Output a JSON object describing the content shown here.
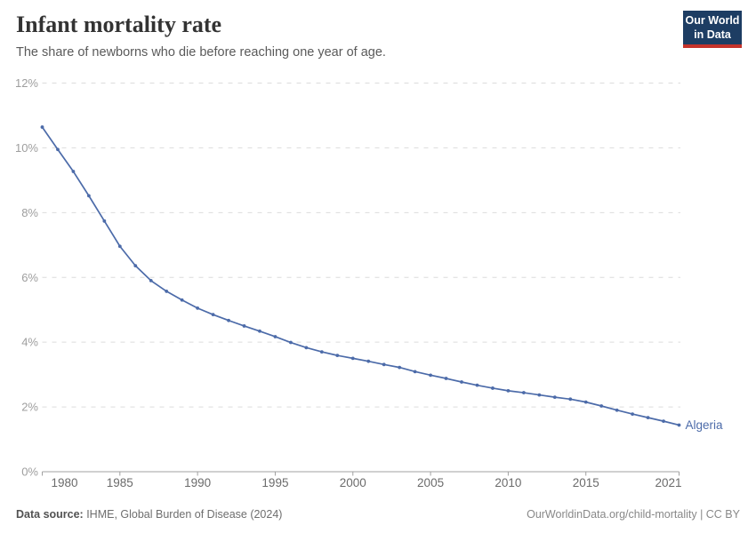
{
  "header": {
    "title": "Infant mortality rate",
    "subtitle": "The share of newborns who die before reaching one year of age."
  },
  "logo": {
    "line1": "Our World",
    "line2": "in Data",
    "bg_color": "#1d3d63",
    "accent_color": "#c5332b",
    "text_color": "#ffffff"
  },
  "chart_data": {
    "type": "line",
    "title": "Infant mortality rate",
    "xlabel": "",
    "ylabel": "",
    "unit": "%",
    "ylim": [
      0,
      12
    ],
    "grid": "horizontal-dashed",
    "legend_position": "end-of-line-label",
    "line_color": "#4c6ba9",
    "entity_label": "Algeria",
    "years": [
      1980,
      1981,
      1982,
      1983,
      1984,
      1985,
      1986,
      1987,
      1988,
      1989,
      1990,
      1991,
      1992,
      1993,
      1994,
      1995,
      1996,
      1997,
      1998,
      1999,
      2000,
      2001,
      2002,
      2003,
      2004,
      2005,
      2006,
      2007,
      2008,
      2009,
      2010,
      2011,
      2012,
      2013,
      2014,
      2015,
      2016,
      2017,
      2018,
      2019,
      2020,
      2021
    ],
    "series": [
      {
        "name": "Algeria",
        "values": [
          10.64,
          9.95,
          9.27,
          8.52,
          7.74,
          6.96,
          6.36,
          5.9,
          5.57,
          5.3,
          5.05,
          4.85,
          4.67,
          4.5,
          4.34,
          4.17,
          3.99,
          3.83,
          3.7,
          3.59,
          3.5,
          3.41,
          3.31,
          3.22,
          3.09,
          2.98,
          2.88,
          2.77,
          2.67,
          2.58,
          2.5,
          2.44,
          2.37,
          2.3,
          2.24,
          2.15,
          2.03,
          1.9,
          1.78,
          1.67,
          1.56,
          1.44
        ]
      }
    ],
    "y_ticks": [
      {
        "value": 0,
        "label": "0%"
      },
      {
        "value": 2,
        "label": "2%"
      },
      {
        "value": 4,
        "label": "4%"
      },
      {
        "value": 6,
        "label": "6%"
      },
      {
        "value": 8,
        "label": "8%"
      },
      {
        "value": 10,
        "label": "10%"
      },
      {
        "value": 12,
        "label": "12%"
      }
    ],
    "x_ticks": [
      {
        "year": 1980,
        "label": "1980",
        "anchor": "start",
        "dx": 10
      },
      {
        "year": 1985,
        "label": "1985",
        "anchor": "middle",
        "dx": 0
      },
      {
        "year": 1990,
        "label": "1990",
        "anchor": "middle",
        "dx": 0
      },
      {
        "year": 1995,
        "label": "1995",
        "anchor": "middle",
        "dx": 0
      },
      {
        "year": 2000,
        "label": "2000",
        "anchor": "middle",
        "dx": 0
      },
      {
        "year": 2005,
        "label": "2005",
        "anchor": "middle",
        "dx": 0
      },
      {
        "year": 2010,
        "label": "2010",
        "anchor": "middle",
        "dx": 0
      },
      {
        "year": 2015,
        "label": "2015",
        "anchor": "middle",
        "dx": 0
      },
      {
        "year": 2021,
        "label": "2021",
        "anchor": "end",
        "dx": 3
      }
    ]
  },
  "footer": {
    "source_label": "Data source:",
    "source_text": " IHME, Global Burden of Disease (2024)",
    "credit": "OurWorldinData.org/child-mortality | CC BY"
  }
}
